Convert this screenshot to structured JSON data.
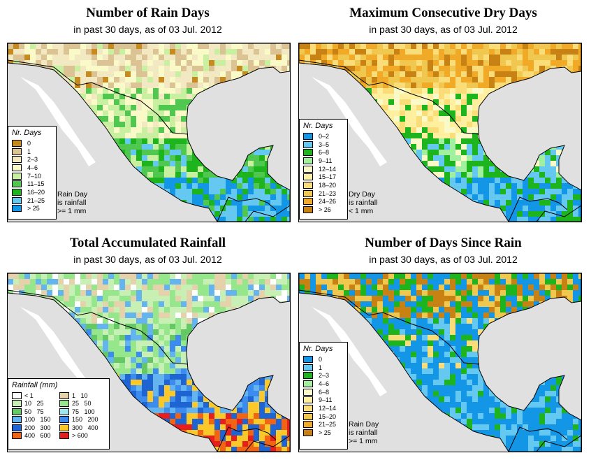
{
  "subtitle": {
    "prefix": "in past 30 days, as of ",
    "date": "03 Jul. 2012"
  },
  "map_colors": {
    "land": "#e0e0e0",
    "water": "#ffffff",
    "border": "#000000"
  },
  "panels": [
    {
      "title": "Number of Rain Days",
      "legend": {
        "title": "Nr. Days",
        "items": [
          {
            "label": "0",
            "color": "#c68a1f"
          },
          {
            "label": "1",
            "color": "#dbc394"
          },
          {
            "label": "2–3",
            "color": "#f2e8c2"
          },
          {
            "label": "4–6",
            "color": "#fafac8"
          },
          {
            "label": "7–10",
            "color": "#c8f0a0"
          },
          {
            "label": "11–15",
            "color": "#50c850"
          },
          {
            "label": "16–20",
            "color": "#1eb41e"
          },
          {
            "label": "21–25",
            "color": "#64c8f0"
          },
          {
            "label": "> 25",
            "color": "#1496e6"
          }
        ]
      },
      "note": [
        "Rain Day",
        "is rainfall",
        ">= 1 mm"
      ]
    },
    {
      "title": "Maximum Consecutive Dry Days",
      "legend": {
        "title": "Nr. Days",
        "items": [
          {
            "label": "0–2",
            "color": "#1496e6"
          },
          {
            "label": "3–5",
            "color": "#64c8f0"
          },
          {
            "label": "6–8",
            "color": "#1eb41e"
          },
          {
            "label": "9–11",
            "color": "#a0f0a0"
          },
          {
            "label": "12–14",
            "color": "#fafac8"
          },
          {
            "label": "15–17",
            "color": "#fff0a0"
          },
          {
            "label": "18–20",
            "color": "#fadc78"
          },
          {
            "label": "21–23",
            "color": "#f0c850"
          },
          {
            "label": "24–26",
            "color": "#f0aa28"
          },
          {
            "label": "> 26",
            "color": "#c88214"
          }
        ]
      },
      "note": [
        "Dry Day",
        "is rainfall",
        "< 1 mm"
      ]
    },
    {
      "title": "Total Accumulated Rainfall",
      "legend": {
        "title": "Rainfall (mm)",
        "items": [
          {
            "label": "< 1",
            "color": "#ffffff"
          },
          {
            "label": "1   10",
            "color": "#e6d2aa"
          },
          {
            "label": "10   25",
            "color": "#c8f0b4"
          },
          {
            "label": "25   50",
            "color": "#96e68c"
          },
          {
            "label": "50   75",
            "color": "#64c864"
          },
          {
            "label": "75   100",
            "color": "#a0e6f0"
          },
          {
            "label": "100   150",
            "color": "#64b4f0"
          },
          {
            "label": "150   200",
            "color": "#3c8cf0"
          },
          {
            "label": "200   300",
            "color": "#1e64d2"
          },
          {
            "label": "300   400",
            "color": "#fac828"
          },
          {
            "label": "400   600",
            "color": "#f06414"
          },
          {
            "label": "> 600",
            "color": "#e61e1e"
          }
        ]
      }
    },
    {
      "title": "Number of Days Since Rain",
      "legend": {
        "title": "Nr. Days",
        "items": [
          {
            "label": "0",
            "color": "#1496e6"
          },
          {
            "label": "1",
            "color": "#64c8f0"
          },
          {
            "label": "2–3",
            "color": "#1eb41e"
          },
          {
            "label": "4–6",
            "color": "#a0f0a0"
          },
          {
            "label": "6–8",
            "color": "#fafac8"
          },
          {
            "label": "9–11",
            "color": "#fff0a0"
          },
          {
            "label": "12–14",
            "color": "#fadc78"
          },
          {
            "label": "15–20",
            "color": "#f0c850"
          },
          {
            "label": "21–25",
            "color": "#f0aa28"
          },
          {
            "label": "> 25",
            "color": "#c88214"
          }
        ]
      },
      "note": [
        "Rain Day",
        "is rainfall",
        ">= 1 mm"
      ]
    }
  ]
}
